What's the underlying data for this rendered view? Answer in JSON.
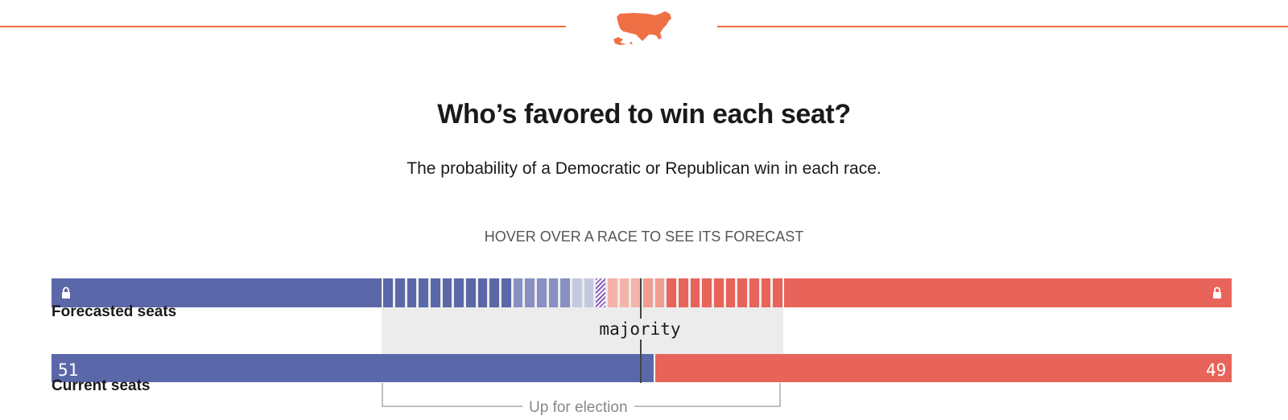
{
  "header": {
    "map_icon": "us-map-icon",
    "accent_color": "#ee7044"
  },
  "title": "Who’s favored to win each seat?",
  "subtitle": "The probability of a Democratic or Republican win in each race.",
  "hint": "HOVER OVER A RACE TO SEE ITS FORECAST",
  "colors": {
    "dem": "#5a68a9",
    "rep": "#e8645a",
    "dem_levels": [
      "#5a68a9",
      "#8890c3",
      "#c5c8e1"
    ],
    "rep_levels": [
      "#f4b3a9",
      "#f19c90",
      "#e8645a"
    ],
    "tossup": "#8a60b8",
    "panel": "#ececec"
  },
  "chart_data": {
    "type": "bar",
    "total_seats": 100,
    "majority_label": "majority",
    "forecasted": {
      "label": "Forecasted seats",
      "locked_dem": 28,
      "locked_rep": 38,
      "up_for_election": [
        {
          "party": "dem",
          "level": 0,
          "count": 11
        },
        {
          "party": "dem",
          "level": 1,
          "count": 5
        },
        {
          "party": "dem",
          "level": 2,
          "count": 2
        },
        {
          "party": "tossup",
          "level": 0,
          "count": 1
        },
        {
          "party": "rep",
          "level": 0,
          "count": 3
        },
        {
          "party": "rep",
          "level": 1,
          "count": 2
        },
        {
          "party": "rep",
          "level": 2,
          "count": 10
        }
      ],
      "lock_icon": "lock-icon"
    },
    "current": {
      "label": "Current seats",
      "dem": 51,
      "rep": 49,
      "dem_label": "51",
      "rep_label": "49"
    },
    "bracket_label": "Up for election"
  }
}
